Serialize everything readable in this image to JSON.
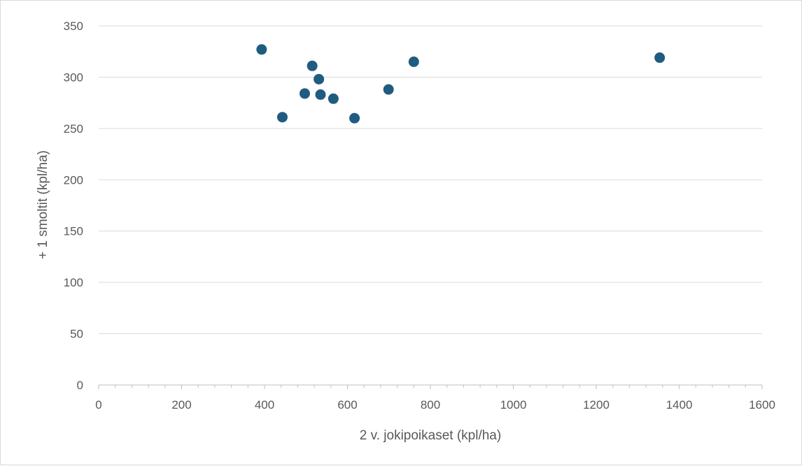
{
  "chart_data": {
    "type": "scatter",
    "title": "",
    "xlabel": "2 v. jokipoikaset (kpl/ha)",
    "ylabel": "+ 1 smoltit (kpl/ha)",
    "xlim": [
      0,
      1600
    ],
    "ylim": [
      0,
      350
    ],
    "x_ticks": [
      0,
      200,
      400,
      600,
      800,
      1000,
      1200,
      1400,
      1600
    ],
    "y_ticks": [
      0,
      50,
      100,
      150,
      200,
      250,
      300,
      350
    ],
    "x_minor_step": 40,
    "grid": {
      "horizontal": true,
      "vertical": false
    },
    "legend": "none",
    "marker_color": "#1f5c80",
    "series": [
      {
        "x": [
          393,
          443,
          497,
          515,
          531,
          535,
          566,
          617,
          699,
          760,
          1353
        ],
        "y": [
          327,
          261,
          284,
          311,
          298,
          283,
          279,
          260,
          288,
          315,
          319
        ]
      }
    ]
  }
}
